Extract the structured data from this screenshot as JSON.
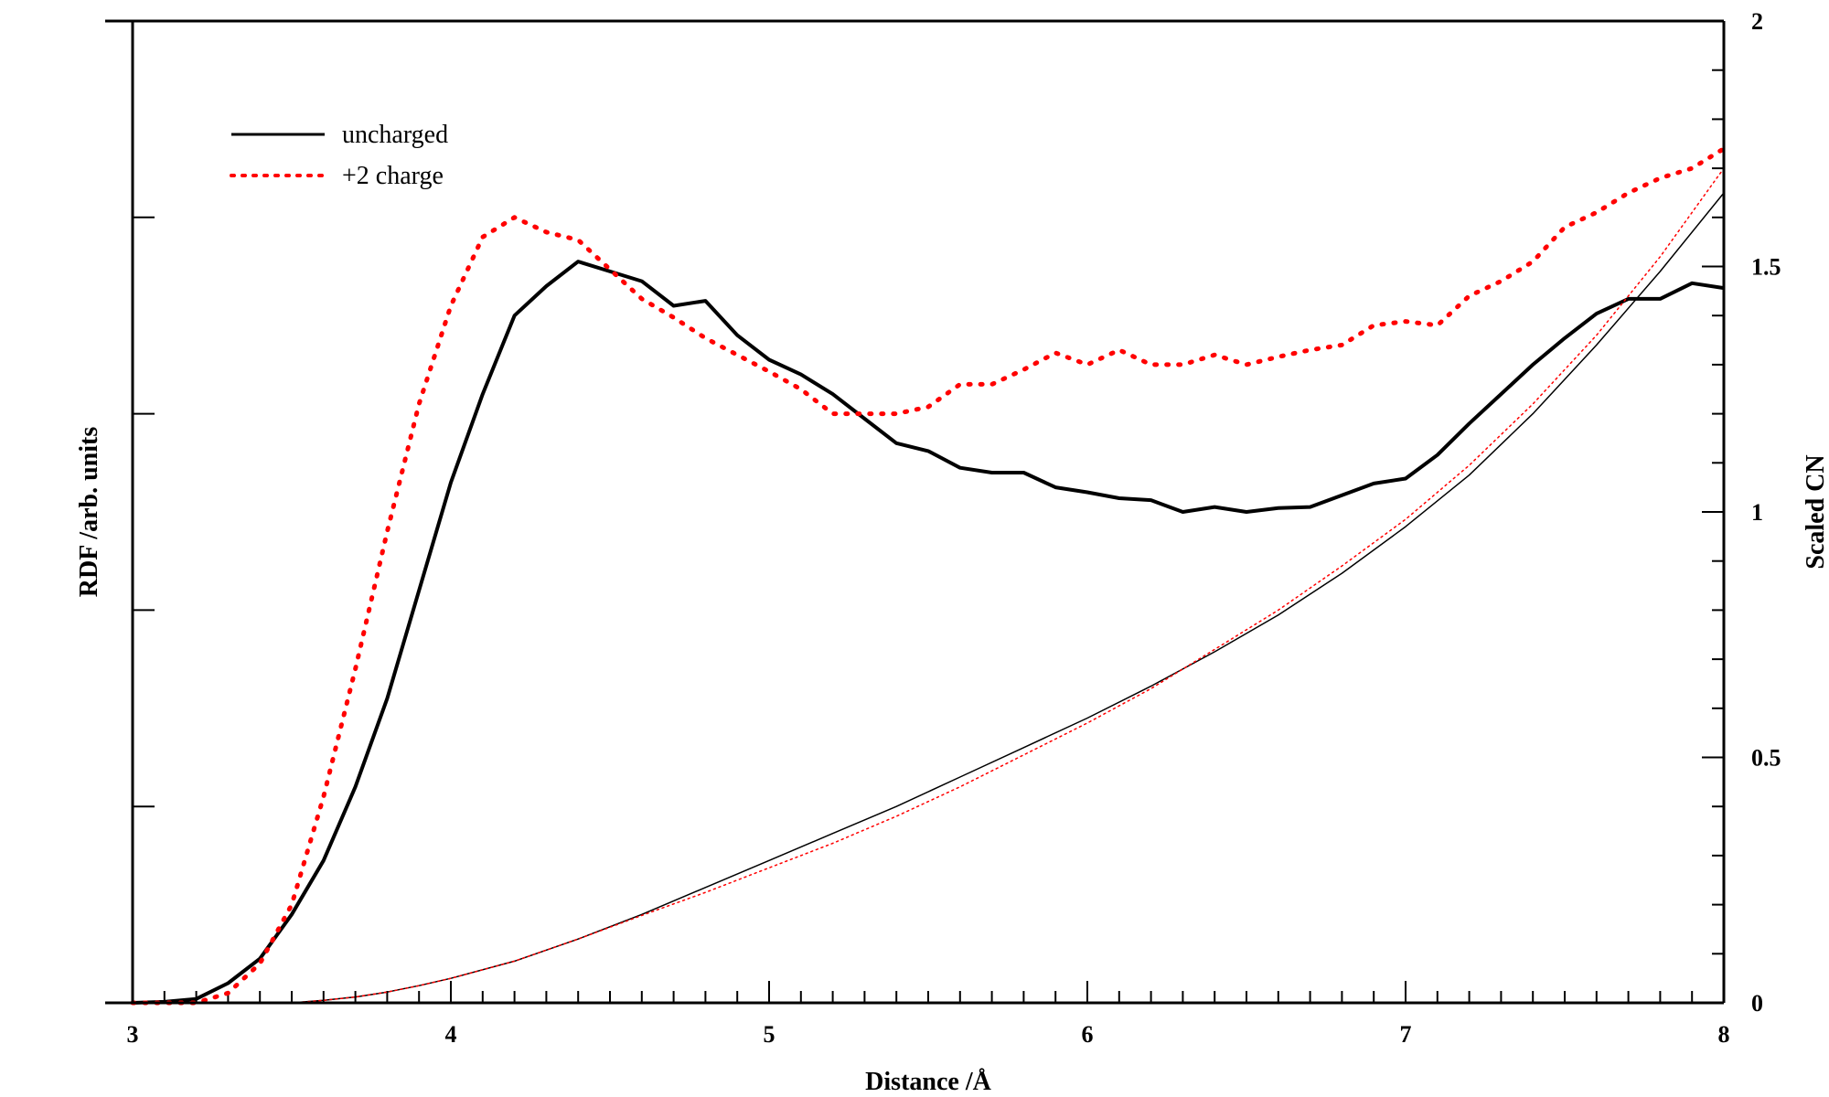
{
  "chart_data": {
    "type": "line",
    "xlabel": "Distance /Å",
    "ylabel_left": "RDF /arb. units",
    "ylabel_right": "Scaled CN",
    "xlim": [
      3,
      8
    ],
    "ylim_left": [
      0,
      1
    ],
    "ylim_right": [
      0,
      2
    ],
    "x_ticks": [
      "3",
      "4",
      "5",
      "6",
      "7",
      "8"
    ],
    "right_ticks": [
      "0",
      "0.5",
      "1",
      "1.5",
      "2"
    ],
    "legend": [
      {
        "label": "uncharged",
        "color": "#000000",
        "style": "solid"
      },
      {
        "label": "+2 charge",
        "color": "#ff0000",
        "style": "dotted"
      }
    ],
    "series": [
      {
        "name": "uncharged",
        "axis": "left",
        "color": "#000000",
        "style": "solid",
        "x": [
          3.0,
          3.1,
          3.2,
          3.3,
          3.4,
          3.5,
          3.6,
          3.7,
          3.8,
          3.9,
          4.0,
          4.1,
          4.2,
          4.3,
          4.4,
          4.5,
          4.6,
          4.7,
          4.8,
          4.9,
          5.0,
          5.1,
          5.2,
          5.3,
          5.4,
          5.5,
          5.6,
          5.7,
          5.8,
          5.9,
          6.0,
          6.1,
          6.2,
          6.3,
          6.4,
          6.5,
          6.6,
          6.7,
          6.8,
          6.9,
          7.0,
          7.1,
          7.2,
          7.3,
          7.4,
          7.5,
          7.6,
          7.7,
          7.8,
          7.9,
          8.0
        ],
        "y": [
          0.0,
          0.001,
          0.004,
          0.02,
          0.045,
          0.09,
          0.145,
          0.22,
          0.31,
          0.42,
          0.53,
          0.62,
          0.7,
          0.73,
          0.755,
          0.745,
          0.735,
          0.71,
          0.715,
          0.68,
          0.655,
          0.64,
          0.62,
          0.595,
          0.57,
          0.562,
          0.545,
          0.54,
          0.54,
          0.525,
          0.52,
          0.514,
          0.512,
          0.5,
          0.505,
          0.5,
          0.504,
          0.505,
          0.517,
          0.529,
          0.534,
          0.558,
          0.59,
          0.62,
          0.65,
          0.677,
          0.702,
          0.717,
          0.717,
          0.733,
          0.728
        ]
      },
      {
        "name": "+2 charge",
        "axis": "left",
        "color": "#ff0000",
        "style": "dotted",
        "x": [
          3.0,
          3.1,
          3.2,
          3.3,
          3.4,
          3.5,
          3.6,
          3.7,
          3.8,
          3.9,
          4.0,
          4.1,
          4.2,
          4.3,
          4.4,
          4.5,
          4.6,
          4.7,
          4.8,
          4.9,
          5.0,
          5.1,
          5.2,
          5.3,
          5.4,
          5.5,
          5.6,
          5.7,
          5.8,
          5.9,
          6.0,
          6.1,
          6.2,
          6.3,
          6.4,
          6.5,
          6.6,
          6.7,
          6.8,
          6.9,
          7.0,
          7.1,
          7.2,
          7.3,
          7.4,
          7.5,
          7.6,
          7.7,
          7.8,
          7.9,
          8.0
        ],
        "y": [
          0.0,
          0.0,
          0.0,
          0.01,
          0.04,
          0.1,
          0.21,
          0.34,
          0.48,
          0.61,
          0.71,
          0.78,
          0.8,
          0.785,
          0.777,
          0.747,
          0.717,
          0.698,
          0.677,
          0.66,
          0.643,
          0.625,
          0.6,
          0.6,
          0.6,
          0.607,
          0.63,
          0.63,
          0.645,
          0.662,
          0.65,
          0.665,
          0.65,
          0.65,
          0.66,
          0.65,
          0.658,
          0.665,
          0.67,
          0.69,
          0.694,
          0.69,
          0.72,
          0.735,
          0.755,
          0.79,
          0.805,
          0.825,
          0.84,
          0.85,
          0.87
        ]
      },
      {
        "name": "uncharged CN",
        "axis": "right",
        "color": "#000000",
        "style": "thin",
        "x": [
          3.5,
          3.6,
          3.7,
          3.8,
          3.9,
          4.0,
          4.2,
          4.4,
          4.6,
          4.8,
          5.0,
          5.2,
          5.4,
          5.6,
          5.8,
          6.0,
          6.2,
          6.4,
          6.6,
          6.8,
          7.0,
          7.2,
          7.4,
          7.6,
          7.8,
          8.0
        ],
        "y": [
          0.0,
          0.005,
          0.012,
          0.022,
          0.035,
          0.05,
          0.085,
          0.13,
          0.18,
          0.235,
          0.29,
          0.345,
          0.4,
          0.46,
          0.52,
          0.58,
          0.645,
          0.715,
          0.79,
          0.875,
          0.97,
          1.075,
          1.2,
          1.34,
          1.49,
          1.65
        ]
      },
      {
        "name": "+2 charge CN",
        "axis": "right",
        "color": "#ff0000",
        "style": "thin-dotted",
        "x": [
          3.5,
          3.6,
          3.7,
          3.8,
          3.9,
          4.0,
          4.2,
          4.4,
          4.6,
          4.8,
          5.0,
          5.2,
          5.4,
          5.6,
          5.8,
          6.0,
          6.2,
          6.4,
          6.6,
          6.8,
          7.0,
          7.2,
          7.4,
          7.6,
          7.8,
          8.0
        ],
        "y": [
          0.0,
          0.005,
          0.012,
          0.022,
          0.035,
          0.05,
          0.085,
          0.13,
          0.178,
          0.225,
          0.275,
          0.325,
          0.38,
          0.44,
          0.505,
          0.57,
          0.64,
          0.72,
          0.8,
          0.89,
          0.985,
          1.095,
          1.22,
          1.36,
          1.52,
          1.7
        ]
      }
    ]
  }
}
